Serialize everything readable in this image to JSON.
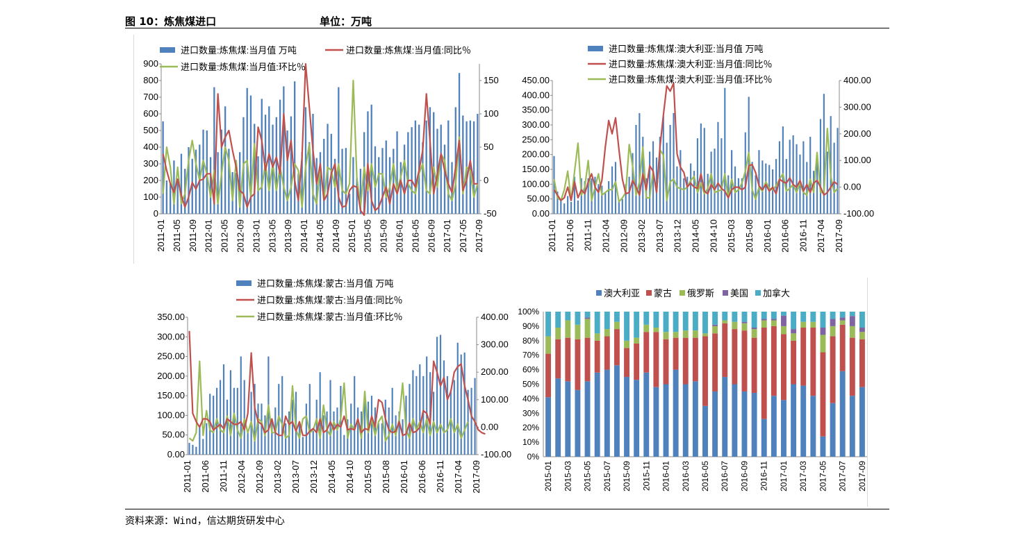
{
  "header": {
    "figure_title": "图 10：炼焦煤进口",
    "unit": "单位：万吨"
  },
  "footer": {
    "source": "资料来源：Wind，信达期货研发中心"
  },
  "colors": {
    "blue": "#4F81BD",
    "red": "#C0504D",
    "green": "#9BBB59",
    "purple": "#8064A2",
    "cyan": "#4BACC6"
  },
  "chart_data": [
    {
      "type": "bar+line",
      "legend": [
        "进口数量:炼焦煤:当月值 万吨",
        "进口数量:炼焦煤:当月值:同比％",
        "进口数量:炼焦煤:当月值:环比％"
      ],
      "left_ticks": [
        "900",
        "800",
        "700",
        "600",
        "500",
        "400",
        "300",
        "200",
        "100",
        "0"
      ],
      "right_ticks": [
        "150",
        "100",
        "50",
        "0",
        "-50"
      ],
      "x_ticks": [
        "2011-01",
        "2011-05",
        "2011-09",
        "2012-01",
        "2012-05",
        "2012-09",
        "2013-01",
        "2013-05",
        "2013-09",
        "2014-01",
        "2014-05",
        "2014-09",
        "2015-01",
        "2015-05",
        "2015-09",
        "2016-01",
        "2016-05",
        "2016-09",
        "2017-01",
        "2017-05",
        "2017-09"
      ],
      "ylim_left": [
        0,
        900
      ],
      "ylim_right": [
        -50,
        175
      ],
      "values": [
        555,
        200,
        180,
        320,
        210,
        360,
        270,
        400,
        330,
        385,
        415,
        505,
        500,
        340,
        760,
        370,
        505,
        645,
        390,
        250,
        245,
        370,
        580,
        755,
        710,
        540,
        345,
        690,
        595,
        645,
        535,
        580,
        685,
        765,
        500,
        585,
        795,
        240,
        370,
        640,
        430,
        600,
        335,
        370,
        450,
        540,
        480,
        330,
        760,
        390,
        395,
        120,
        340,
        215,
        270,
        490,
        615,
        655,
        405,
        340,
        395,
        440,
        340,
        390,
        495,
        310,
        415,
        490,
        520,
        560,
        535,
        430,
        560,
        640,
        610,
        510,
        535,
        415,
        560,
        310,
        640,
        845,
        590,
        555,
        560,
        555,
        600
      ],
      "yoy": [
        40,
        15,
        -5,
        -18,
        2,
        -22,
        -40,
        -25,
        -3,
        -13,
        0,
        2,
        10,
        10,
        -35,
        130,
        50,
        65,
        75,
        45,
        20,
        -15,
        -20,
        -40,
        -25,
        -20,
        80,
        60,
        15,
        40,
        20,
        35,
        10,
        100,
        30,
        60,
        0,
        -30,
        35,
        175,
        110,
        45,
        -5,
        25,
        -30,
        -20,
        10,
        25,
        -25,
        -40,
        -38,
        -15,
        -8,
        -10,
        -45,
        -55,
        25,
        -30,
        -45,
        -40,
        -25,
        -10,
        -35,
        -5,
        -20,
        0,
        -20,
        0,
        0,
        -10,
        15,
        45,
        130,
        60,
        -20,
        10,
        40,
        15,
        -5,
        -18,
        20,
        60,
        -15,
        0,
        30,
        -5,
        -5
      ],
      "mom": [
        -20,
        50,
        20,
        -35,
        20,
        -35,
        -20,
        30,
        60,
        25,
        0,
        30,
        10,
        -25,
        15,
        -35,
        10,
        50,
        30,
        -30,
        30,
        -40,
        25,
        30,
        -25,
        55,
        -15,
        -10,
        25,
        -15,
        25,
        -15,
        20,
        -10,
        -30,
        -10,
        25,
        15,
        -40,
        20,
        55,
        -20,
        -35,
        20,
        -30,
        20,
        15,
        -10,
        25,
        -15,
        -20,
        -5,
        150,
        5,
        -40,
        20,
        -15,
        25,
        -10,
        10,
        10,
        -25,
        -10,
        25,
        -15,
        5,
        30,
        -5,
        -15,
        -20,
        10,
        25,
        -15,
        -20,
        20,
        -10,
        40,
        30,
        -20,
        -30,
        -5,
        65,
        -20,
        20,
        15,
        -25,
        -5
      ]
    },
    {
      "type": "bar+line",
      "legend": [
        "进口数量:炼焦煤:澳大利亚:当月值 万吨",
        "进口数量:炼焦煤:澳大利亚:当月值:同比％",
        "进口数量:炼焦煤:澳大利亚:当月值:环比％"
      ],
      "left_ticks": [
        "450.00",
        "400.00",
        "350.00",
        "300.00",
        "250.00",
        "200.00",
        "150.00",
        "100.00",
        "50.00",
        "0.00"
      ],
      "right_ticks": [
        "400.00",
        "300.00",
        "200.00",
        "100.00",
        "0.00",
        "-100.00"
      ],
      "x_ticks": [
        "2011-01",
        "2011-06",
        "2011-11",
        "2012-04",
        "2012-09",
        "2013-02",
        "2013-07",
        "2013-12",
        "2014-05",
        "2014-10",
        "2015-03",
        "2015-08",
        "2016-01",
        "2016-06",
        "2016-11",
        "2017-04",
        "2017-09"
      ],
      "ylim_left": [
        0,
        450
      ],
      "ylim_right": [
        -100,
        400
      ],
      "values": [
        195,
        75,
        50,
        35,
        60,
        40,
        125,
        45,
        120,
        110,
        120,
        120,
        125,
        100,
        95,
        70,
        110,
        160,
        175,
        45,
        50,
        100,
        125,
        205,
        300,
        340,
        260,
        120,
        210,
        245,
        190,
        260,
        330,
        240,
        300,
        340,
        160,
        215,
        120,
        125,
        170,
        145,
        255,
        305,
        290,
        135,
        210,
        220,
        310,
        255,
        425,
        130,
        215,
        160,
        120,
        120,
        275,
        395,
        175,
        130,
        215,
        180,
        170,
        165,
        150,
        185,
        245,
        295,
        185,
        250,
        265,
        235,
        200,
        245,
        175,
        260,
        145,
        175,
        320,
        405,
        210,
        330,
        240,
        290
      ],
      "yoy": [
        -10,
        -30,
        -50,
        -40,
        0,
        -50,
        20,
        -40,
        -10,
        -25,
        20,
        50,
        0,
        -20,
        25,
        150,
        250,
        200,
        260,
        140,
        30,
        -25,
        -20,
        25,
        0,
        -30,
        50,
        -10,
        80,
        60,
        -20,
        150,
        270,
        380,
        360,
        390,
        125,
        75,
        55,
        0,
        15,
        0,
        -5,
        50,
        -15,
        -25,
        10,
        -10,
        15,
        -5,
        -15,
        -40,
        -10,
        0,
        0,
        -10,
        0,
        80,
        85,
        55,
        5,
        -10,
        10,
        -15,
        0,
        -25,
        30,
        20,
        15,
        35,
        10,
        0,
        25,
        -15,
        10,
        -20,
        15,
        25,
        0,
        -30,
        -20,
        0,
        20,
        10
      ],
      "mom": [
        30,
        -40,
        -50,
        -10,
        60,
        -50,
        60,
        165,
        -30,
        0,
        100,
        -50,
        0,
        50,
        -30,
        -20,
        -10,
        -10,
        20,
        -55,
        -40,
        -20,
        160,
        80,
        -30,
        20,
        150,
        -40,
        -40,
        60,
        -20,
        140,
        120,
        -50,
        20,
        30,
        0,
        -5,
        -10,
        0,
        25,
        40,
        -20,
        15,
        -25,
        -5,
        50,
        -20,
        -15,
        -10,
        50,
        -40,
        30,
        -20,
        -10,
        15,
        60,
        130,
        -10,
        -45,
        0,
        -15,
        20,
        -5,
        -10,
        5,
        30,
        50,
        -15,
        -5,
        10,
        -20,
        15,
        -20,
        -30,
        30,
        -20,
        130,
        -20,
        -20,
        220,
        40,
        -20,
        -5
      ]
    },
    {
      "type": "bar+line",
      "legend": [
        "进口数量:炼焦煤:蒙古:当月值 万吨",
        "进口数量:炼焦煤:蒙古:当月值:同比％",
        "进口数量:炼焦煤:蒙古:当月值:环比％"
      ],
      "left_ticks": [
        "350.00",
        "300.00",
        "250.00",
        "200.00",
        "150.00",
        "100.00",
        "50.00",
        "0.00"
      ],
      "right_ticks": [
        "400.00",
        "300.00",
        "200.00",
        "100.00",
        "0.00",
        "-100.00"
      ],
      "x_ticks": [
        "2011-01",
        "2011-06",
        "2011-11",
        "2012-04",
        "2012-09",
        "2013-02",
        "2013-07",
        "2013-12",
        "2014-05",
        "2014-10",
        "2015-03",
        "2015-08",
        "2016-01",
        "2016-06",
        "2016-11",
        "2017-04",
        "2017-09"
      ],
      "ylim_left": [
        0,
        350
      ],
      "ylim_right": [
        -100,
        400
      ],
      "values": [
        30,
        25,
        20,
        70,
        40,
        80,
        155,
        150,
        170,
        190,
        230,
        140,
        215,
        170,
        170,
        250,
        190,
        60,
        160,
        180,
        130,
        130,
        100,
        250,
        90,
        120,
        180,
        200,
        80,
        110,
        140,
        160,
        80,
        45,
        130,
        180,
        60,
        140,
        210,
        100,
        110,
        190,
        110,
        120,
        175,
        50,
        90,
        130,
        200,
        120,
        110,
        160,
        135,
        150,
        120,
        80,
        80,
        140,
        120,
        170,
        100,
        110,
        90,
        150,
        180,
        215,
        200,
        230,
        200,
        250,
        210,
        160,
        300,
        305,
        240,
        200,
        165,
        190,
        285,
        255,
        260,
        165,
        170,
        195
      ],
      "yoy": [
        350,
        50,
        20,
        0,
        30,
        30,
        20,
        -10,
        0,
        10,
        -5,
        30,
        20,
        10,
        10,
        20,
        -10,
        50,
        270,
        70,
        20,
        10,
        -20,
        -10,
        30,
        -20,
        -30,
        -30,
        40,
        10,
        20,
        -15,
        20,
        -30,
        -30,
        -15,
        -5,
        -20,
        30,
        -20,
        -10,
        20,
        -10,
        10,
        0,
        40,
        -10,
        -5,
        -10,
        30,
        -20,
        -5,
        -10,
        40,
        0,
        100,
        90,
        30,
        -10,
        -20,
        -15,
        20,
        -30,
        -25,
        15,
        -20,
        -15,
        0,
        60,
        50,
        10,
        240,
        200,
        150,
        180,
        100,
        130,
        200,
        220,
        230,
        150,
        100,
        40,
        20,
        -10,
        -20,
        -25
      ],
      "mom": [
        -40,
        -50,
        -20,
        240,
        -30,
        60,
        -10,
        -20,
        30,
        -10,
        -20,
        40,
        -30,
        50,
        -10,
        -40,
        30,
        -20,
        20,
        -50,
        30,
        20,
        -30,
        80,
        -20,
        -20,
        40,
        10,
        -40,
        -30,
        150,
        -10,
        -40,
        30,
        40,
        -20,
        -10,
        30,
        -40,
        80,
        -10,
        -30,
        20,
        -10,
        30,
        160,
        -40,
        10,
        -10,
        30,
        -40,
        130,
        -20,
        30,
        -30,
        20,
        40,
        -50,
        -30,
        10,
        -30,
        30,
        160,
        -10,
        -40,
        30,
        -10,
        20,
        -20,
        30,
        -30,
        20,
        -20,
        10,
        -20,
        -10,
        30,
        -20,
        10,
        -40,
        -10,
        20
      ],
      "series_names_note": ""
    },
    {
      "type": "stacked_percent_bar",
      "legend": [
        "澳大利亚",
        "蒙古",
        "俄罗斯",
        "美国",
        "加拿大"
      ],
      "y_ticks": [
        "100%",
        "90%",
        "80%",
        "70%",
        "60%",
        "50%",
        "40%",
        "30%",
        "20%",
        "10%",
        "0%"
      ],
      "x_ticks": [
        "2015-01",
        "2015-03",
        "2015-05",
        "2015-07",
        "2015-09",
        "2015-11",
        "2016-01",
        "2016-03",
        "2016-05",
        "2016-07",
        "2016-09",
        "2016-11",
        "2017-01",
        "2017-03",
        "2017-05",
        "2017-07",
        "2017-09"
      ],
      "categories": [
        "2015-01",
        "2015-02",
        "2015-03",
        "2015-04",
        "2015-05",
        "2015-06",
        "2015-07",
        "2015-08",
        "2015-09",
        "2015-10",
        "2015-11",
        "2015-12",
        "2016-01",
        "2016-02",
        "2016-03",
        "2016-04",
        "2016-05",
        "2016-06",
        "2016-07",
        "2016-08",
        "2016-09",
        "2016-10",
        "2016-11",
        "2016-12",
        "2017-01",
        "2017-02",
        "2017-03",
        "2017-04",
        "2017-05",
        "2017-06",
        "2017-07",
        "2017-08",
        "2017-09"
      ],
      "series": [
        {
          "name": "澳大利亚",
          "values": [
            41,
            54,
            52,
            46,
            52,
            58,
            60,
            63,
            55,
            53,
            58,
            48,
            50,
            60,
            50,
            52,
            35,
            45,
            55,
            50,
            45,
            44,
            26,
            42,
            43,
            50,
            49,
            42,
            14,
            37,
            59,
            42,
            48
          ]
        },
        {
          "name": "蒙古",
          "values": [
            30,
            27,
            30,
            35,
            30,
            22,
            23,
            25,
            20,
            25,
            28,
            38,
            31,
            22,
            32,
            30,
            48,
            40,
            37,
            38,
            42,
            38,
            63,
            48,
            50,
            30,
            40,
            47,
            58,
            46,
            32,
            40,
            33
          ]
        },
        {
          "name": "俄罗斯",
          "values": [
            12,
            8,
            12,
            10,
            13,
            5,
            5,
            5,
            5,
            4,
            5,
            3,
            5,
            4,
            5,
            5,
            2,
            5,
            2,
            5,
            5,
            6,
            5,
            4,
            6,
            5,
            4,
            4,
            12,
            7,
            3,
            8,
            5
          ]
        },
        {
          "name": "美国",
          "values": [
            0,
            0,
            0,
            0,
            1,
            0,
            0,
            0,
            0,
            0,
            0,
            0,
            0,
            0,
            0,
            0,
            0,
            1,
            0,
            0,
            1,
            1,
            1,
            1,
            8,
            3,
            0,
            0,
            5,
            5,
            2,
            7,
            3
          ]
        },
        {
          "name": "加拿大",
          "values": [
            17,
            11,
            6,
            9,
            4,
            15,
            12,
            7,
            20,
            18,
            9,
            11,
            14,
            14,
            13,
            13,
            15,
            9,
            6,
            7,
            7,
            11,
            5,
            5,
            3,
            12,
            7,
            7,
            11,
            5,
            4,
            3,
            11
          ]
        }
      ]
    }
  ]
}
